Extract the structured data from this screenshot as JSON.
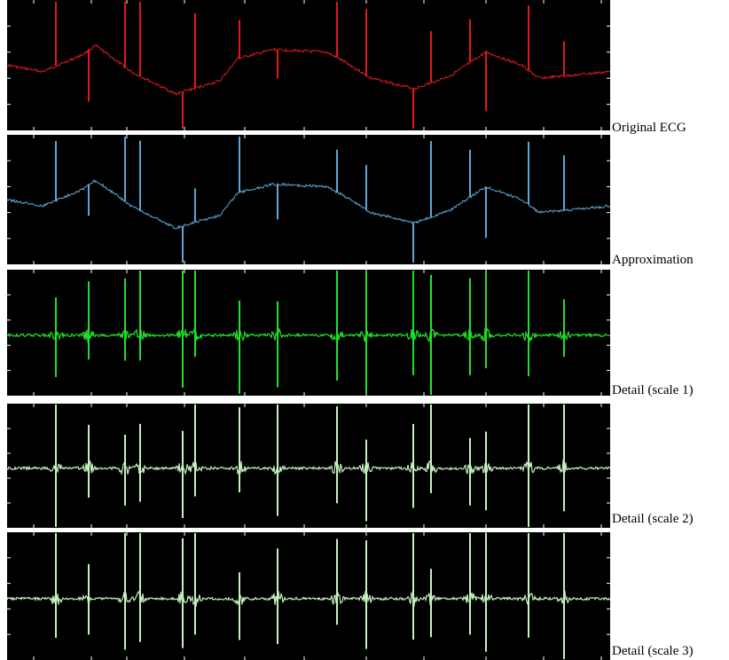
{
  "chart_data": [
    {
      "type": "line",
      "label": "Original ECG",
      "color": "#e0191c",
      "style": "baseline"
    },
    {
      "type": "line",
      "label": "Approximation",
      "color": "#5ba6d6",
      "style": "baseline"
    },
    {
      "type": "line",
      "label": "Detail (scale 1)",
      "color": "#22e02a",
      "style": "detail"
    },
    {
      "type": "line",
      "label": "Detail (scale 2)",
      "color": "#c4f2be",
      "style": "detail"
    },
    {
      "type": "line",
      "label": "Detail (scale 3)",
      "color": "#c4f2be",
      "style": "detail"
    }
  ]
}
